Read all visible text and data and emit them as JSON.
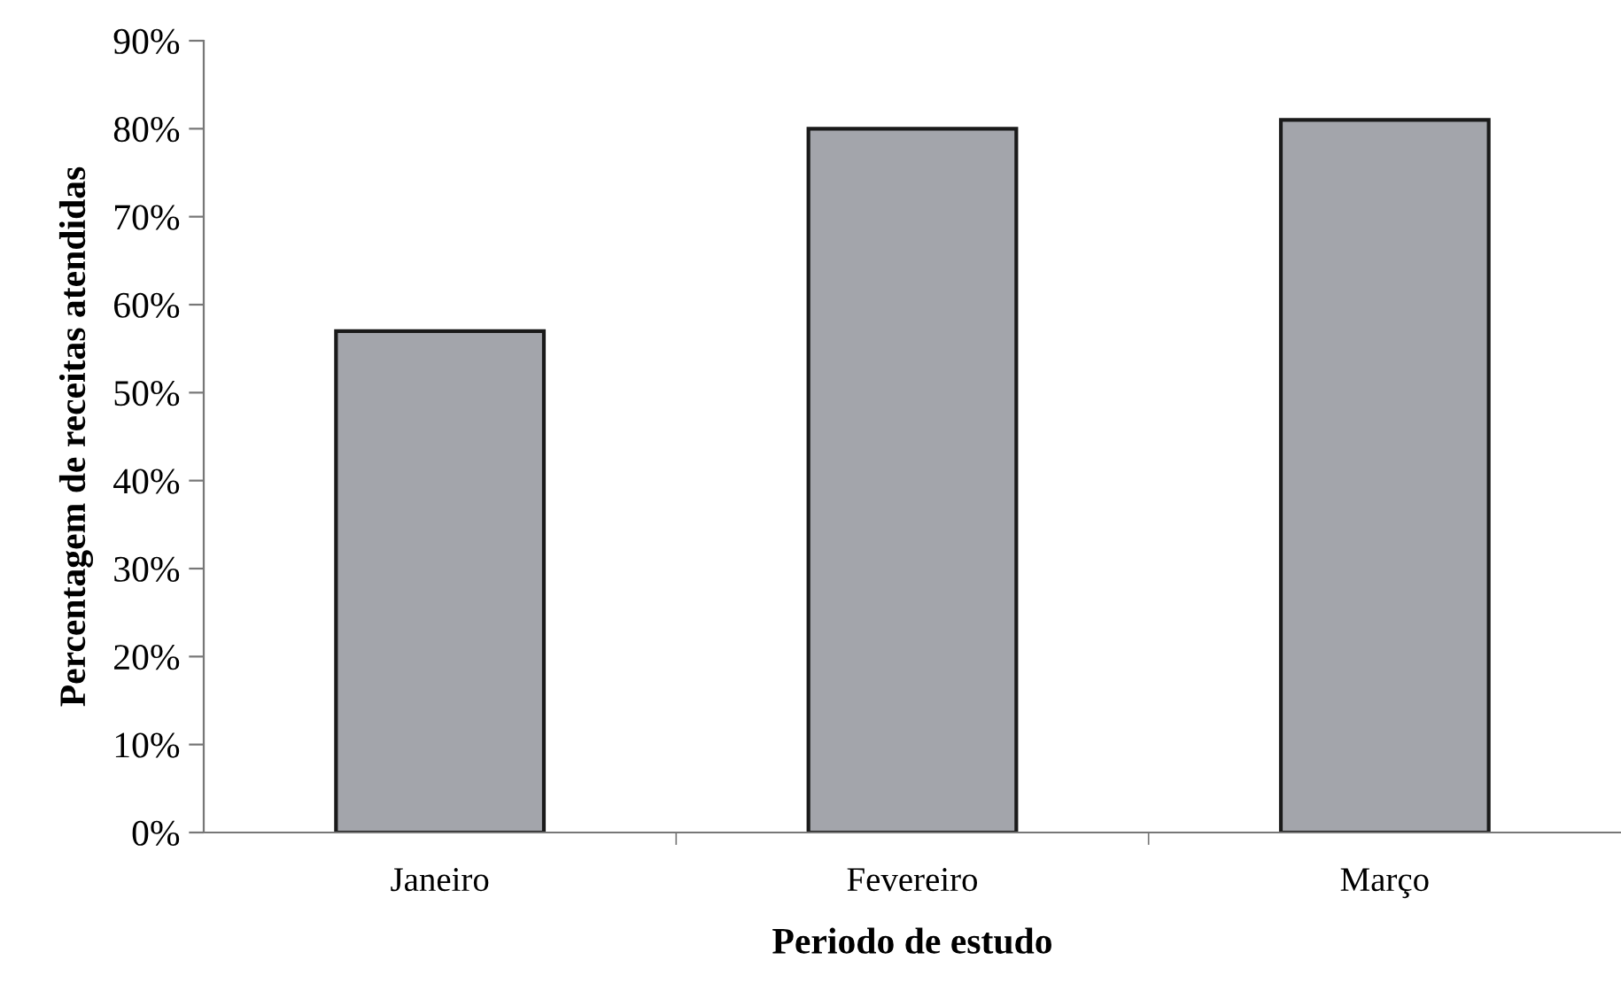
{
  "chart_data": {
    "type": "bar",
    "xlabel": "Periodo de estudo",
    "ylabel": "Percentagem de receitas atendidas",
    "categories": [
      "Janeiro",
      "Fevereiro",
      "Março"
    ],
    "values": [
      57,
      80,
      81
    ],
    "color": "#a3a5ab",
    "ylim": [
      0,
      90
    ],
    "yticks": [
      {
        "value": 0,
        "label": "0%"
      },
      {
        "value": 10,
        "label": "10%"
      },
      {
        "value": 20,
        "label": "20%"
      },
      {
        "value": 30,
        "label": "30%"
      },
      {
        "value": 40,
        "label": "40%"
      },
      {
        "value": 50,
        "label": "50%"
      },
      {
        "value": 60,
        "label": "60%"
      },
      {
        "value": 70,
        "label": "70%"
      },
      {
        "value": 80,
        "label": "80%"
      },
      {
        "value": 90,
        "label": "90%"
      }
    ],
    "grid": false
  }
}
